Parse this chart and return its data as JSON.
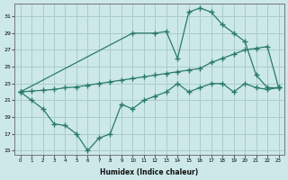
{
  "xlabel": "Humidex (Indice chaleur)",
  "bg_color": "#cce8e8",
  "grid_color": "#aacccc",
  "line_color": "#2a7a6a",
  "xlim": [
    -0.5,
    23.5
  ],
  "ylim": [
    14.5,
    32.5
  ],
  "yticks": [
    15,
    17,
    19,
    21,
    23,
    25,
    27,
    29,
    31
  ],
  "xticks": [
    0,
    1,
    2,
    3,
    4,
    5,
    6,
    7,
    8,
    9,
    10,
    11,
    12,
    13,
    14,
    15,
    16,
    17,
    18,
    19,
    20,
    21,
    22,
    23
  ],
  "line1_x": [
    0,
    10,
    12,
    13,
    14,
    15,
    16,
    17,
    18,
    19,
    20,
    21,
    22,
    23
  ],
  "line1_y": [
    22,
    29,
    29,
    29.2,
    26,
    31.5,
    32,
    31.5,
    30,
    29,
    28,
    24,
    22.5,
    22.5
  ],
  "line2_x": [
    0,
    1,
    2,
    3,
    4,
    5,
    6,
    7,
    8,
    9,
    10,
    11,
    12,
    13,
    14,
    15,
    16,
    17,
    18,
    19,
    20,
    21,
    22,
    23
  ],
  "line2_y": [
    22,
    22.1,
    22.2,
    22.3,
    22.5,
    22.6,
    22.8,
    23.0,
    23.2,
    23.4,
    23.6,
    23.8,
    24.0,
    24.2,
    24.4,
    24.6,
    24.8,
    25.5,
    26.0,
    26.5,
    27.0,
    27.2,
    27.4,
    22.5
  ],
  "line3_x": [
    0,
    1,
    2,
    3,
    4,
    5,
    6,
    7,
    8,
    9,
    10,
    11,
    12,
    13,
    14,
    15,
    16,
    17,
    18,
    19,
    20,
    21,
    22,
    23
  ],
  "line3_y": [
    22,
    21,
    20,
    18.2,
    18,
    17,
    15,
    16.5,
    17,
    20.5,
    20,
    21,
    21.5,
    22,
    23,
    22,
    22.5,
    23,
    23,
    22,
    23,
    22.5,
    22.3,
    22.5
  ]
}
